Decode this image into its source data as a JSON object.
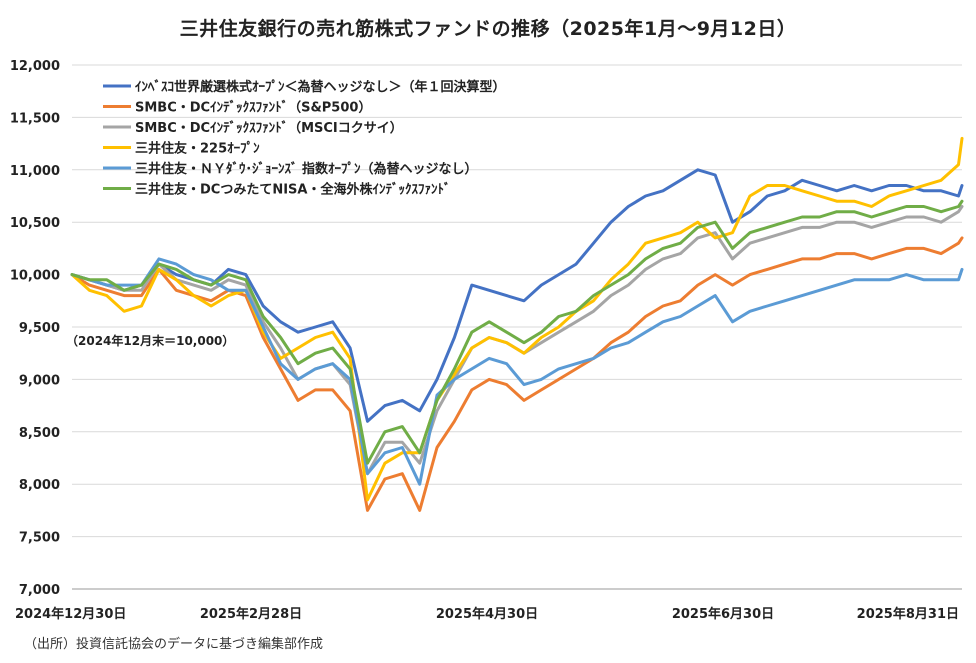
{
  "title": "三井住友銀行の売れ筋株式ファンドの推移（2025年1月〜9月12日）",
  "base_note": "（2024年12月末＝10,000）",
  "source_note": "（出所）投資信託協会のデータに基づき編集部作成",
  "chart_data": {
    "type": "line",
    "ylim": [
      7000,
      12000
    ],
    "yticks": [
      "7,000",
      "7,500",
      "8,000",
      "8,500",
      "9,000",
      "9,500",
      "10,000",
      "10,500",
      "11,000",
      "11,500",
      "12,000"
    ],
    "x_tick_labels": [
      "2024年12月30日",
      "2025年2月28日",
      "2025年4月30日",
      "2025年6月30日",
      "2025年8月31日"
    ],
    "grid": true,
    "legend_position": "top-left",
    "x": [
      0,
      5,
      10,
      15,
      20,
      25,
      30,
      35,
      40,
      45,
      50,
      55,
      60,
      65,
      70,
      75,
      80,
      85,
      90,
      95,
      100,
      105,
      110,
      115,
      120,
      125,
      130,
      135,
      140,
      145,
      150,
      155,
      160,
      165,
      170,
      175,
      180,
      185,
      190,
      195,
      200,
      205,
      210,
      215,
      220,
      225,
      230,
      235,
      240,
      245,
      250,
      255,
      256
    ],
    "series": [
      {
        "name": "ｲﾝﾍﾞｽｺ世界厳選株式ｵｰﾌﾟﾝ＜為替ヘッジなし＞（年１回決算型）",
        "color": "#4472C4",
        "values": [
          10000,
          9950,
          9900,
          9850,
          9900,
          10100,
          10000,
          9950,
          9900,
          10050,
          10000,
          9700,
          9550,
          9450,
          9500,
          9550,
          9300,
          8600,
          8750,
          8800,
          8700,
          9000,
          9400,
          9900,
          9850,
          9800,
          9750,
          9900,
          10000,
          10100,
          10300,
          10500,
          10650,
          10750,
          10800,
          10900,
          11000,
          10950,
          10500,
          10600,
          10750,
          10800,
          10900,
          10850,
          10800,
          10850,
          10800,
          10850,
          10850,
          10800,
          10800,
          10750,
          10850
        ]
      },
      {
        "name": "SMBC・DCｲﾝﾃﾞｯｸｽﾌｧﾝﾄﾞ（S&P500）",
        "color": "#ED7D31",
        "values": [
          10000,
          9900,
          9850,
          9800,
          9800,
          10050,
          9850,
          9800,
          9750,
          9850,
          9800,
          9400,
          9100,
          8800,
          8900,
          8900,
          8700,
          7750,
          8050,
          8100,
          7750,
          8350,
          8600,
          8900,
          9000,
          8950,
          8800,
          8900,
          9000,
          9100,
          9200,
          9350,
          9450,
          9600,
          9700,
          9750,
          9900,
          10000,
          9900,
          10000,
          10050,
          10100,
          10150,
          10150,
          10200,
          10200,
          10150,
          10200,
          10250,
          10250,
          10200,
          10300,
          10350
        ]
      },
      {
        "name": "SMBC・DCｲﾝﾃﾞｯｸｽﾌｧﾝﾄﾞ（MSCIコクサイ）",
        "color": "#A5A5A5",
        "values": [
          10000,
          9950,
          9900,
          9850,
          9850,
          10100,
          9950,
          9900,
          9850,
          9950,
          9900,
          9550,
          9300,
          9000,
          9100,
          9150,
          8950,
          8100,
          8400,
          8400,
          8200,
          8700,
          9000,
          9300,
          9400,
          9350,
          9250,
          9350,
          9450,
          9550,
          9650,
          9800,
          9900,
          10050,
          10150,
          10200,
          10350,
          10400,
          10150,
          10300,
          10350,
          10400,
          10450,
          10450,
          10500,
          10500,
          10450,
          10500,
          10550,
          10550,
          10500,
          10600,
          10650
        ]
      },
      {
        "name": "三井住友・225ｵｰﾌﾟﾝ",
        "color": "#FFC000",
        "values": [
          10000,
          9850,
          9800,
          9650,
          9700,
          10050,
          9950,
          9800,
          9700,
          9800,
          9850,
          9450,
          9200,
          9300,
          9400,
          9450,
          9200,
          7850,
          8200,
          8300,
          8300,
          8800,
          9050,
          9300,
          9400,
          9350,
          9250,
          9400,
          9500,
          9650,
          9750,
          9950,
          10100,
          10300,
          10350,
          10400,
          10500,
          10350,
          10400,
          10750,
          10850,
          10850,
          10800,
          10750,
          10700,
          10700,
          10650,
          10750,
          10800,
          10850,
          10900,
          11050,
          11300
        ]
      },
      {
        "name": "三井住友・ＮＹﾀﾞｳ･ｼﾞｮｰﾝｽﾞ 指数ｵｰﾌﾟﾝ（為替ヘッジなし）",
        "color": "#5B9BD5",
        "values": [
          10000,
          9950,
          9900,
          9900,
          9900,
          10150,
          10100,
          10000,
          9950,
          9850,
          9850,
          9500,
          9150,
          9000,
          9100,
          9150,
          9000,
          8100,
          8300,
          8350,
          8000,
          8850,
          9000,
          9100,
          9200,
          9150,
          8950,
          9000,
          9100,
          9150,
          9200,
          9300,
          9350,
          9450,
          9550,
          9600,
          9700,
          9800,
          9550,
          9650,
          9700,
          9750,
          9800,
          9850,
          9900,
          9950,
          9950,
          9950,
          10000,
          9950,
          9950,
          9950,
          10050
        ]
      },
      {
        "name": "三井住友・DCつみたてNISA・全海外株ｲﾝﾃﾞｯｸｽﾌｧﾝﾄﾞ",
        "color": "#70AD47",
        "values": [
          10000,
          9950,
          9950,
          9850,
          9900,
          10100,
          10050,
          9950,
          9900,
          10000,
          9950,
          9600,
          9400,
          9150,
          9250,
          9300,
          9100,
          8200,
          8500,
          8550,
          8300,
          8800,
          9100,
          9450,
          9550,
          9450,
          9350,
          9450,
          9600,
          9650,
          9800,
          9900,
          10000,
          10150,
          10250,
          10300,
          10450,
          10500,
          10250,
          10400,
          10450,
          10500,
          10550,
          10550,
          10600,
          10600,
          10550,
          10600,
          10650,
          10650,
          10600,
          10650,
          10700
        ]
      }
    ]
  }
}
